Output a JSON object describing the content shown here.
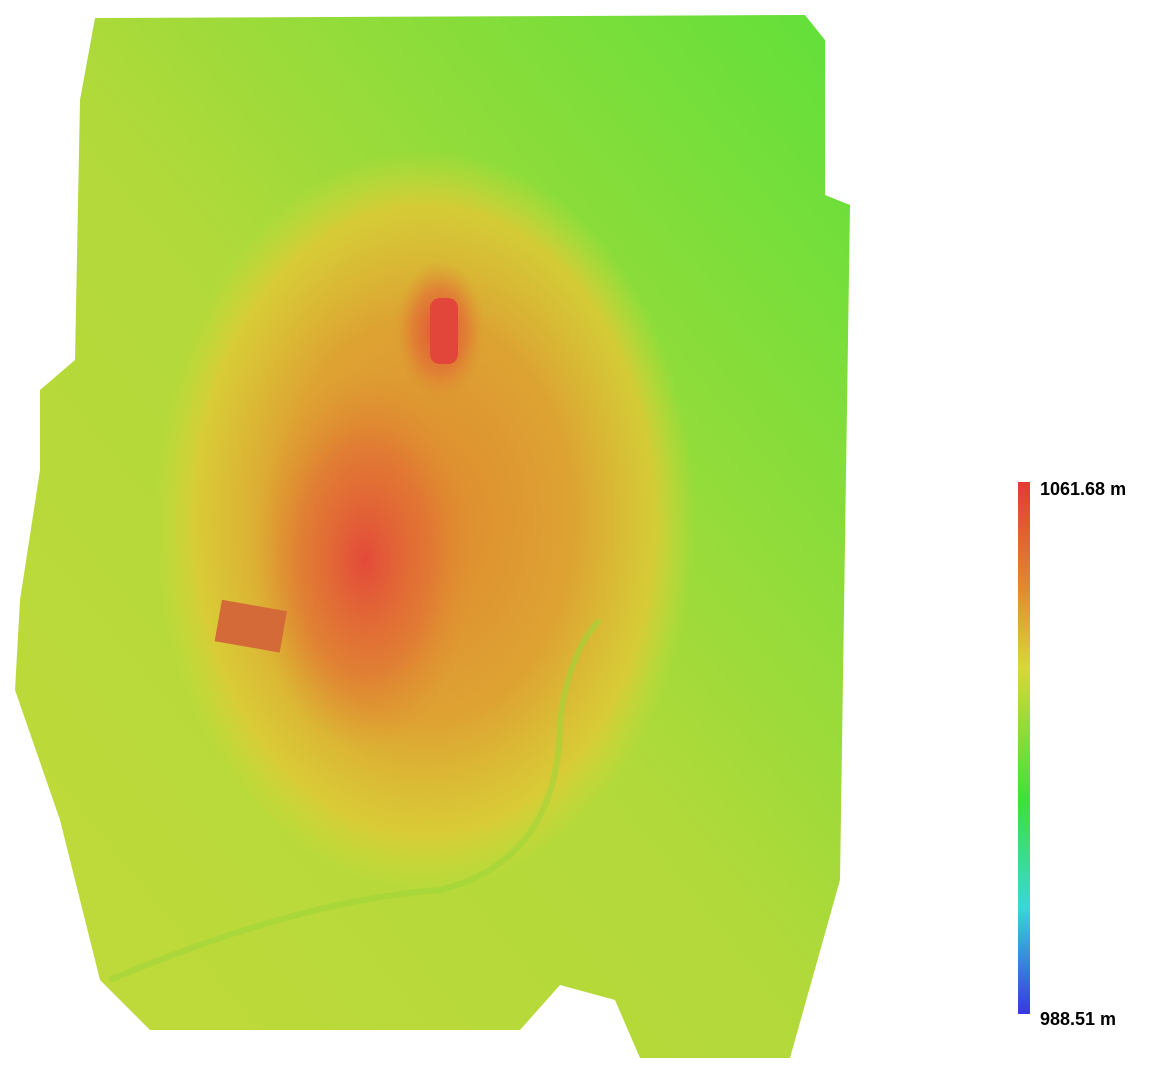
{
  "legend": {
    "max_label": "1061.68 m",
    "min_label": "988.51 m"
  }
}
